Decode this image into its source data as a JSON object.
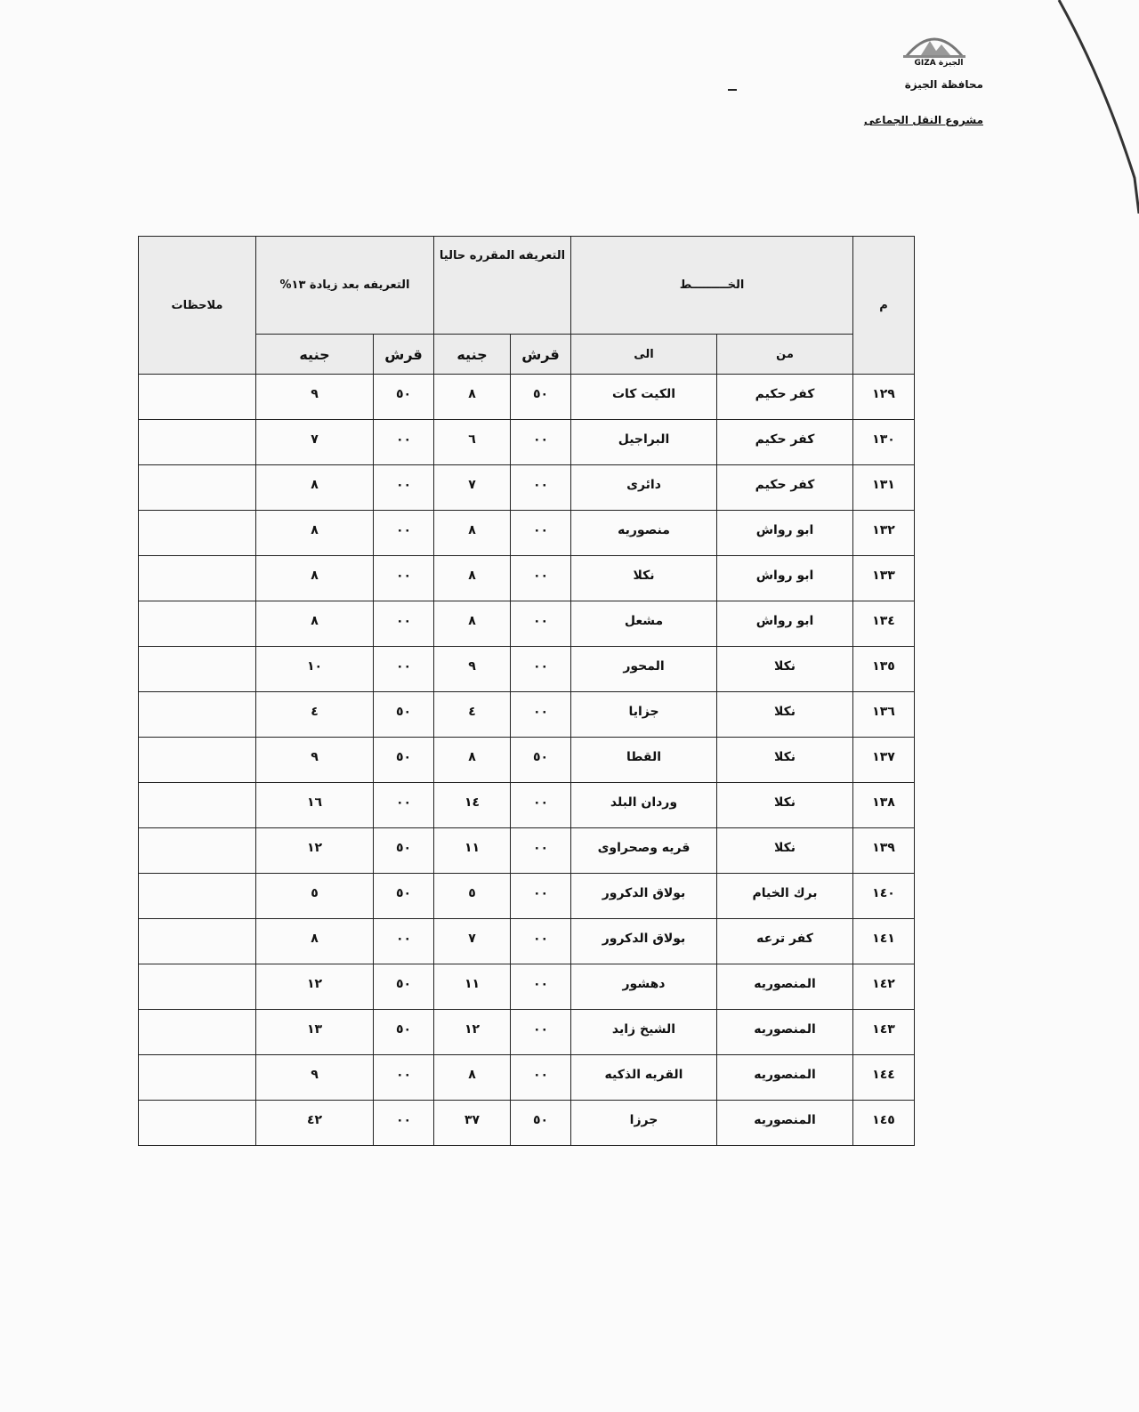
{
  "header": {
    "logo_text": "الجيزة GIZA",
    "governorate": "محافظة الجيزة",
    "project": "مشروع النقل الجماعى"
  },
  "table": {
    "col_num": "م",
    "col_line": "الخـــــــــط",
    "col_from": "من",
    "col_to": "الى",
    "col_current": "التعريفه المقرره حاليا",
    "col_after": "التعريفه بعد زيادة ١٣%",
    "col_notes": "ملاحظات",
    "piastre": "قرش",
    "pound": "جنيه",
    "rows": [
      {
        "num": "١٢٩",
        "from": "كفر حكيم",
        "to": "الكيت كات",
        "cur_q": "٥٠",
        "cur_j": "٨",
        "new_q": "٥٠",
        "new_j": "٩",
        "notes": ""
      },
      {
        "num": "١٣٠",
        "from": "كفر حكيم",
        "to": "البراجيل",
        "cur_q": "٠٠",
        "cur_j": "٦",
        "new_q": "٠٠",
        "new_j": "٧",
        "notes": ""
      },
      {
        "num": "١٣١",
        "from": "كفر حكيم",
        "to": "دائرى",
        "cur_q": "٠٠",
        "cur_j": "٧",
        "new_q": "٠٠",
        "new_j": "٨",
        "notes": ""
      },
      {
        "num": "١٣٢",
        "from": "ابو رواش",
        "to": "منصوريه",
        "cur_q": "٠٠",
        "cur_j": "٨",
        "new_q": "٠٠",
        "new_j": "٨",
        "notes": ""
      },
      {
        "num": "١٣٣",
        "from": "ابو رواش",
        "to": "نكلا",
        "cur_q": "٠٠",
        "cur_j": "٨",
        "new_q": "٠٠",
        "new_j": "٨",
        "notes": ""
      },
      {
        "num": "١٣٤",
        "from": "ابو رواش",
        "to": "مشعل",
        "cur_q": "٠٠",
        "cur_j": "٨",
        "new_q": "٠٠",
        "new_j": "٨",
        "notes": ""
      },
      {
        "num": "١٣٥",
        "from": "نكلا",
        "to": "المحور",
        "cur_q": "٠٠",
        "cur_j": "٩",
        "new_q": "٠٠",
        "new_j": "١٠",
        "notes": ""
      },
      {
        "num": "١٣٦",
        "from": "نكلا",
        "to": "جزايا",
        "cur_q": "٠٠",
        "cur_j": "٤",
        "new_q": "٥٠",
        "new_j": "٤",
        "notes": ""
      },
      {
        "num": "١٣٧",
        "from": "نكلا",
        "to": "القطا",
        "cur_q": "٥٠",
        "cur_j": "٨",
        "new_q": "٥٠",
        "new_j": "٩",
        "notes": ""
      },
      {
        "num": "١٣٨",
        "from": "نكلا",
        "to": "وردان البلد",
        "cur_q": "٠٠",
        "cur_j": "١٤",
        "new_q": "٠٠",
        "new_j": "١٦",
        "notes": ""
      },
      {
        "num": "١٣٩",
        "from": "نكلا",
        "to": "قريه وصحراوى",
        "cur_q": "٠٠",
        "cur_j": "١١",
        "new_q": "٥٠",
        "new_j": "١٢",
        "notes": ""
      },
      {
        "num": "١٤٠",
        "from": "برك الخيام",
        "to": "بولاق الدكرور",
        "cur_q": "٠٠",
        "cur_j": "٥",
        "new_q": "٥٠",
        "new_j": "٥",
        "notes": ""
      },
      {
        "num": "١٤١",
        "from": "كفر ترعه",
        "to": "بولاق الدكرور",
        "cur_q": "٠٠",
        "cur_j": "٧",
        "new_q": "٠٠",
        "new_j": "٨",
        "notes": ""
      },
      {
        "num": "١٤٢",
        "from": "المنصوريه",
        "to": "دهشور",
        "cur_q": "٠٠",
        "cur_j": "١١",
        "new_q": "٥٠",
        "new_j": "١٢",
        "notes": ""
      },
      {
        "num": "١٤٣",
        "from": "المنصوريه",
        "to": "الشيخ زايد",
        "cur_q": "٠٠",
        "cur_j": "١٢",
        "new_q": "٥٠",
        "new_j": "١٣",
        "notes": ""
      },
      {
        "num": "١٤٤",
        "from": "المنصوريه",
        "to": "القريه الذكيه",
        "cur_q": "٠٠",
        "cur_j": "٨",
        "new_q": "٠٠",
        "new_j": "٩",
        "notes": ""
      },
      {
        "num": "١٤٥",
        "from": "المنصوريه",
        "to": "جرزا",
        "cur_q": "٥٠",
        "cur_j": "٣٧",
        "new_q": "٠٠",
        "new_j": "٤٢",
        "notes": ""
      }
    ]
  }
}
